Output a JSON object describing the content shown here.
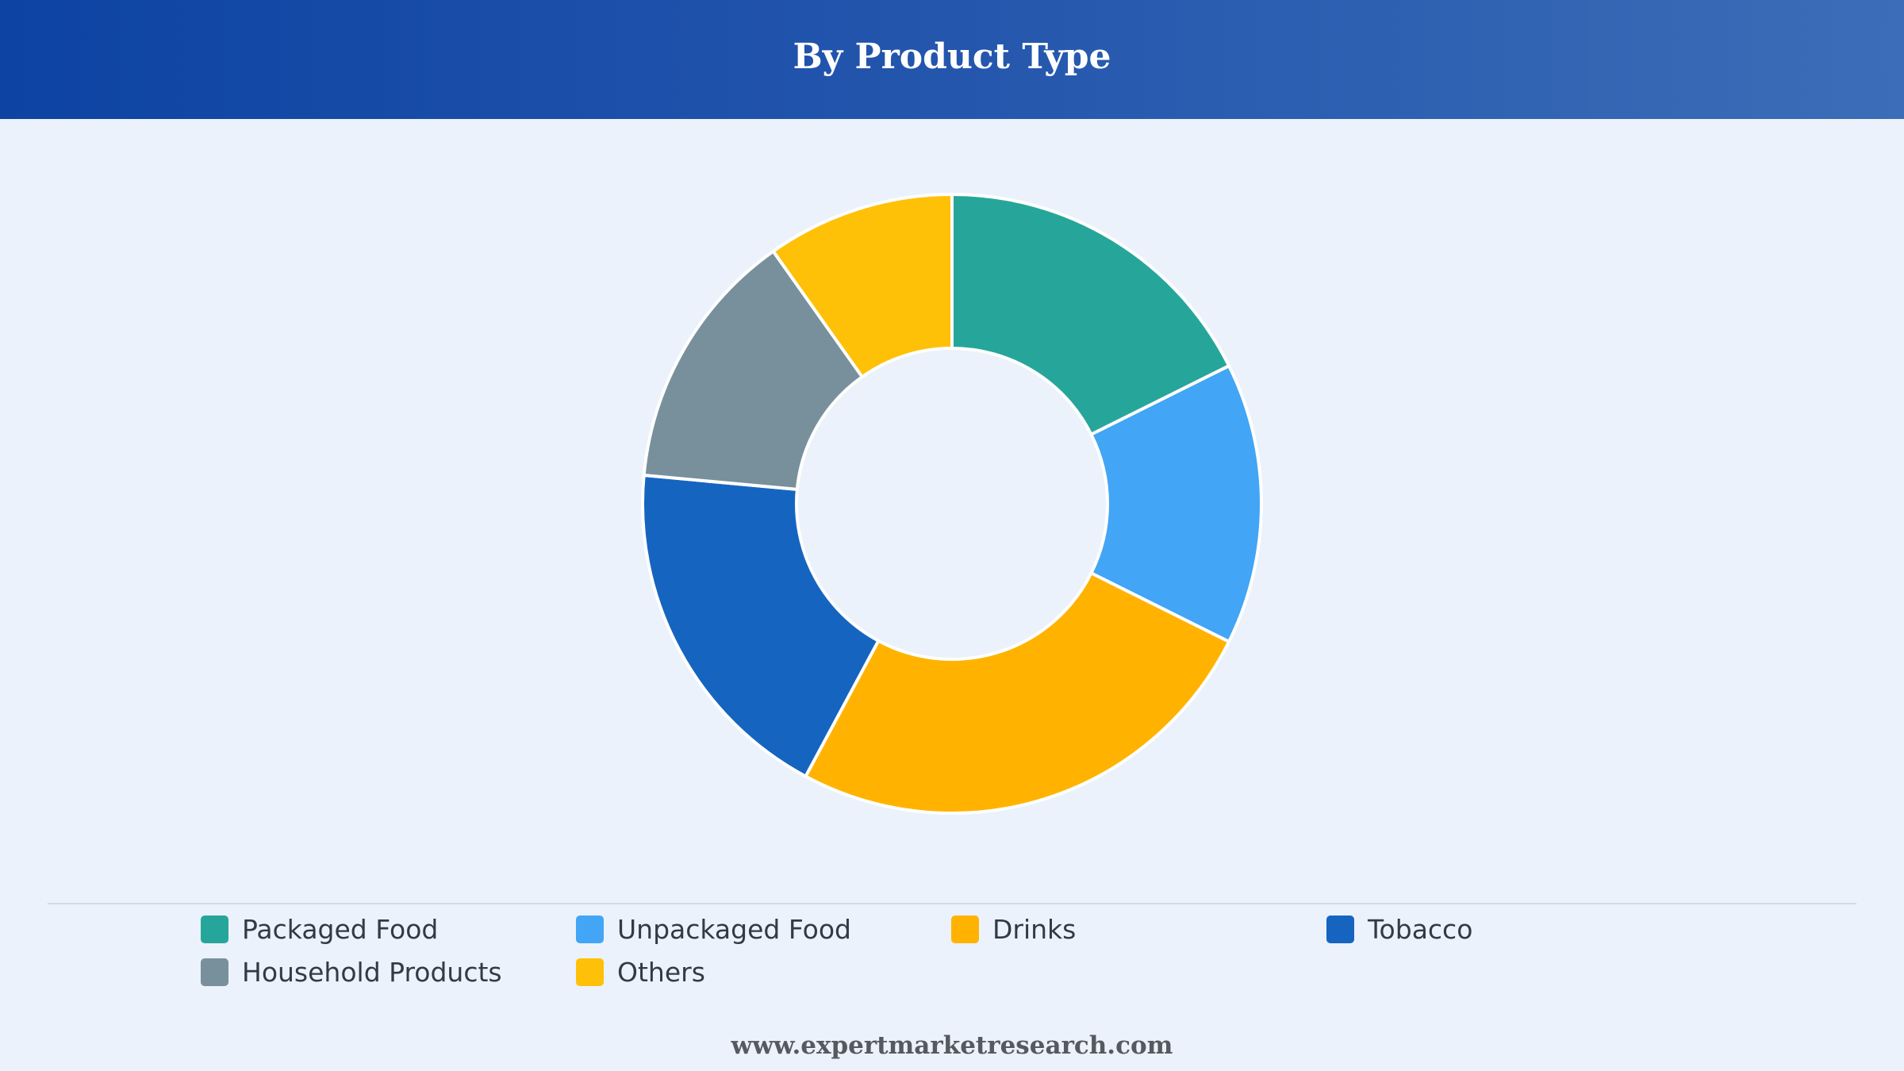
{
  "header": {
    "title": "By Product Type"
  },
  "chart_data": {
    "type": "pie",
    "style": "donut",
    "title": "By Product Type",
    "categories": [
      "Packaged Food",
      "Unpackaged Food",
      "Drinks",
      "Tobacco",
      "Household Products",
      "Others"
    ],
    "values": [
      18,
      15,
      26,
      19,
      14,
      10
    ],
    "colors": [
      "#26a69a",
      "#42a5f5",
      "#ffb300",
      "#1565c0",
      "#78909c",
      "#ffc107"
    ],
    "legend_position": "bottom"
  },
  "legend": {
    "items": [
      {
        "label": "Packaged Food",
        "color": "#26a69a"
      },
      {
        "label": "Unpackaged Food",
        "color": "#42a5f5"
      },
      {
        "label": "Drinks",
        "color": "#ffb300"
      },
      {
        "label": "Tobacco",
        "color": "#1565c0"
      },
      {
        "label": "Household Products",
        "color": "#78909c"
      },
      {
        "label": "Others",
        "color": "#ffc107"
      }
    ]
  },
  "footer": {
    "website": "www.expertmarketresearch.com"
  }
}
